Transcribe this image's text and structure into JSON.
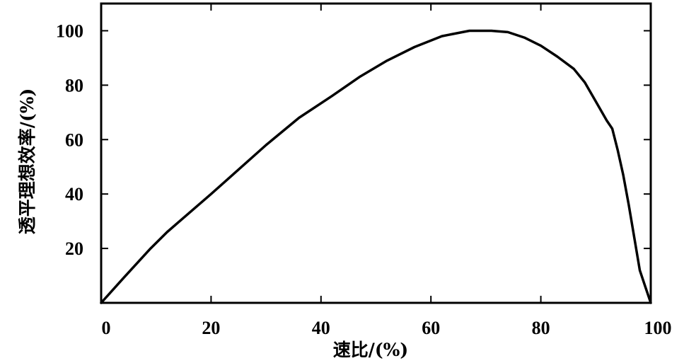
{
  "chart_data": {
    "type": "line",
    "xlabel": "速比/(%)",
    "ylabel": "透平理想效率/(%)",
    "xlim": [
      0,
      100
    ],
    "ylim": [
      0,
      110
    ],
    "x_ticks": [
      0,
      20,
      40,
      60,
      80,
      100
    ],
    "y_ticks": [
      20,
      40,
      60,
      80,
      100
    ],
    "grid": false,
    "series": [
      {
        "color": "#000000",
        "x": [
          0,
          4,
          9,
          12,
          16,
          20,
          25,
          30,
          36,
          42,
          47,
          52,
          57,
          62,
          67,
          71,
          74,
          77,
          80,
          83,
          86,
          88,
          90,
          92,
          93,
          94,
          95,
          96,
          97,
          98,
          99,
          100
        ],
        "y": [
          0,
          9,
          20,
          26,
          33,
          40,
          49,
          58,
          68,
          76,
          83,
          89,
          94,
          98,
          100,
          100,
          99.5,
          97.5,
          94.5,
          90.5,
          86,
          81,
          74,
          67,
          64,
          56,
          47,
          36,
          24,
          12,
          6,
          0
        ]
      }
    ]
  }
}
